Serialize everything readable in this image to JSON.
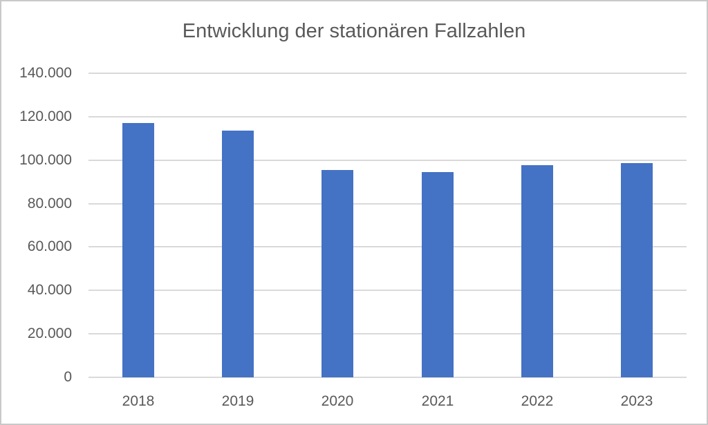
{
  "chart_data": {
    "type": "bar",
    "title": "Entwicklung der stationären Fallzahlen",
    "categories": [
      "2018",
      "2019",
      "2020",
      "2021",
      "2022",
      "2023"
    ],
    "values": [
      117000,
      113500,
      95500,
      94600,
      97600,
      98600
    ],
    "xlabel": "",
    "ylabel": "",
    "ylim": [
      0,
      140000
    ],
    "ytick_step": 20000,
    "ytick_labels": [
      "0",
      "20.000",
      "40.000",
      "60.000",
      "80.000",
      "100.000",
      "120.000",
      "140.000"
    ],
    "grid": true,
    "legend_position": "none",
    "colors": {
      "bar_fill": "#4472C4",
      "text": "#595959",
      "gridline": "#D9D9D9",
      "frame_border": "#C9C9C9",
      "background": "#FFFFFF"
    }
  }
}
